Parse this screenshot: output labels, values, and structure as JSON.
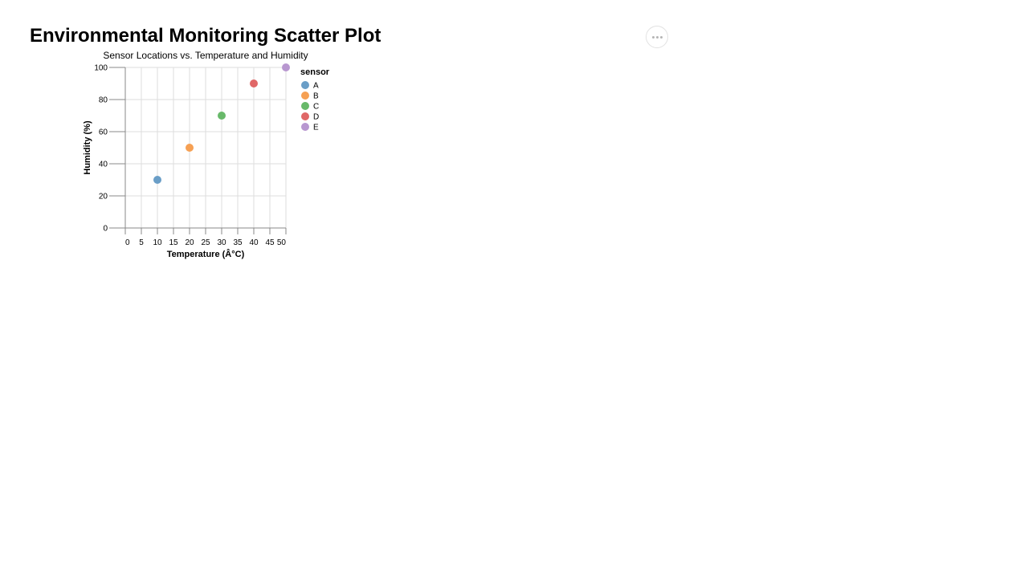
{
  "page": {
    "title": "Environmental Monitoring Scatter Plot"
  },
  "actions_menu": {
    "icon": "more-horizontal-icon"
  },
  "chart_data": {
    "type": "scatter",
    "title": "Sensor Locations vs. Temperature and Humidity",
    "xlabel": "Temperature (Â°C)",
    "ylabel": "Humidity (%)",
    "xlim": [
      0,
      50
    ],
    "ylim": [
      0,
      100
    ],
    "xticks": [
      0,
      5,
      10,
      15,
      20,
      25,
      30,
      35,
      40,
      45,
      50
    ],
    "yticks": [
      0,
      20,
      40,
      60,
      80,
      100
    ],
    "grid": true,
    "legend": {
      "title": "sensor",
      "placement": "right"
    },
    "series": [
      {
        "name": "A",
        "color": "#6a9ec7",
        "points": [
          {
            "x": 10,
            "y": 30
          }
        ]
      },
      {
        "name": "B",
        "color": "#f6a053",
        "points": [
          {
            "x": 20,
            "y": 50
          }
        ]
      },
      {
        "name": "C",
        "color": "#68b96a",
        "points": [
          {
            "x": 30,
            "y": 70
          }
        ]
      },
      {
        "name": "D",
        "color": "#e06767",
        "points": [
          {
            "x": 40,
            "y": 90
          }
        ]
      },
      {
        "name": "E",
        "color": "#b897d0",
        "points": [
          {
            "x": 50,
            "y": 100
          }
        ]
      }
    ]
  }
}
